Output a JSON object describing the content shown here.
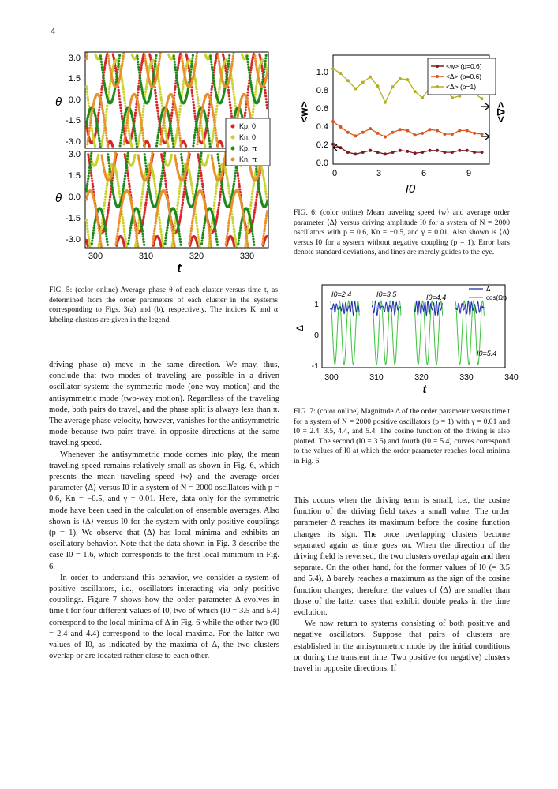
{
  "page_number": "4",
  "fig5": {
    "caption": "FIG. 5: (color online) Average phase θ of each cluster versus time t, as determined from the order parameters of each cluster in the systems corresponding to Figs. 3(a) and (b), respectively. The indices K and α labeling clusters are given in the legend.",
    "y_label": "θ",
    "x_label": "t",
    "y_ticks": [
      "3.0",
      "1.5",
      "0.0",
      "-1.5",
      "-3.0"
    ],
    "x_ticks": [
      "300",
      "310",
      "320",
      "330"
    ],
    "legend": [
      "Kp, 0",
      "Kn, 0",
      "Kp, π",
      "Kn, π"
    ],
    "colors": {
      "kp0": "#d62728",
      "kn0": "#c8d230",
      "kppi": "#1e8a1e",
      "knpi": "#e8902a"
    }
  },
  "fig6": {
    "caption": "FIG. 6: (color online) Mean traveling speed ⟨w⟩ and average order parameter ⟨Δ⟩ versus driving amplitude I0 for a system of N = 2000 oscillators with p = 0.6, Kn = −0.5, and γ = 0.01. Also shown is ⟨Δ⟩ versus I0 for a system without negative coupling (p = 1). Error bars denote standard deviations, and lines are merely guides to the eye.",
    "y_label_left": "<w>",
    "y_label_right": "<Δ>",
    "x_label": "I0",
    "y_ticks": [
      "1.0",
      "0.8",
      "0.6",
      "0.4",
      "0.2",
      "0.0"
    ],
    "x_ticks": [
      "0",
      "3",
      "6",
      "9"
    ],
    "legend": [
      "<w> (p=0.6)",
      "<Δ> (p=0.6)",
      "<Δ> (p=1)"
    ],
    "colors": {
      "w": "#7a1f1f",
      "d06": "#d9561a",
      "d1": "#b5b022"
    }
  },
  "fig7": {
    "caption": "FIG. 7: (color online) Magnitude Δ of the order parameter versus time t for a system of N = 2000 positive oscillators (p = 1) with γ = 0.01 and I0 = 2.4, 3.5, 4.4, and 5.4. The cosine function of the driving is also plotted. The second (I0 = 3.5) and fourth (I0 = 5.4) curves correspond to the values of I0 at which the order parameter reaches local minima in Fig. 6.",
    "y_label": "Δ",
    "x_label": "t",
    "y_ticks": [
      "1",
      "0",
      "-1"
    ],
    "x_ticks": [
      "300",
      "310",
      "320",
      "330",
      "340"
    ],
    "legend": [
      "Δ",
      "cos(Ωt)"
    ],
    "annotations": [
      "I0=2.4",
      "I0=3.5",
      "I0=4.4",
      "I0=5.4"
    ],
    "colors": {
      "delta": "#1c2fa8",
      "cos": "#3cc43c"
    }
  },
  "chart_data": [
    {
      "type": "scatter",
      "id": "fig5",
      "xlabel": "t",
      "ylabel": "θ",
      "xlim": [
        298,
        333
      ],
      "ylim": [
        -3.14,
        3.14
      ],
      "series": [
        {
          "name": "Kp, 0",
          "x": [],
          "y": []
        },
        {
          "name": "Kn, 0",
          "x": [],
          "y": []
        },
        {
          "name": "Kp, π",
          "x": [],
          "y": []
        },
        {
          "name": "Kn, π",
          "x": [],
          "y": []
        }
      ]
    },
    {
      "type": "line",
      "id": "fig6",
      "xlabel": "I0",
      "ylabel": "<w>",
      "xlim": [
        0,
        10.5
      ],
      "ylim": [
        0,
        1.2
      ],
      "x": [
        0,
        0.5,
        1,
        1.5,
        2,
        2.5,
        3,
        3.5,
        4,
        4.5,
        5,
        5.5,
        6,
        6.5,
        7,
        7.5,
        8,
        8.5,
        9,
        9.5,
        10
      ],
      "series": [
        {
          "name": "<w> (p=0.6)",
          "values": [
            0.22,
            0.18,
            0.13,
            0.11,
            0.13,
            0.15,
            0.13,
            0.11,
            0.13,
            0.15,
            0.14,
            0.12,
            0.13,
            0.15,
            0.15,
            0.13,
            0.13,
            0.15,
            0.15,
            0.13,
            0.13
          ]
        },
        {
          "name": "<Δ> (p=0.6)",
          "values": [
            0.47,
            0.41,
            0.35,
            0.31,
            0.35,
            0.39,
            0.34,
            0.3,
            0.35,
            0.38,
            0.37,
            0.32,
            0.34,
            0.38,
            0.37,
            0.33,
            0.33,
            0.37,
            0.37,
            0.34,
            0.33
          ]
        },
        {
          "name": "<Δ> (p=1)",
          "values": [
            1.05,
            1.0,
            0.92,
            0.83,
            0.9,
            0.96,
            0.86,
            0.68,
            0.85,
            0.94,
            0.93,
            0.8,
            0.73,
            0.84,
            0.88,
            0.84,
            0.73,
            0.75,
            0.81,
            0.78,
            0.72
          ]
        }
      ]
    },
    {
      "type": "line",
      "id": "fig7",
      "xlabel": "t",
      "ylabel": "Δ",
      "xlim": [
        298,
        342
      ],
      "ylim": [
        -1.1,
        1.5
      ],
      "series": [
        {
          "name": "Δ",
          "segments": [
            [
              300,
              307
            ],
            [
              310,
              317
            ],
            [
              320,
              327
            ],
            [
              330,
              337
            ]
          ]
        },
        {
          "name": "cos(Ωt)",
          "segments": [
            [
              300,
              307
            ],
            [
              310,
              317
            ],
            [
              320,
              327
            ],
            [
              330,
              337
            ]
          ]
        }
      ]
    }
  ],
  "body_left": [
    "driving phase α) move in the same direction. We may, thus, conclude that two modes of traveling are possible in a driven oscillator system: the symmetric mode (one-way motion) and the antisymmetric mode (two-way motion). Regardless of the traveling mode, both pairs do travel, and the phase split is always less than π. The average phase velocity, however, vanishes for the antisymmetric mode because two pairs travel in opposite directions at the same traveling speed.",
    "Whenever the antisymmetric mode comes into play, the mean traveling speed remains relatively small as shown in Fig. 6, which presents the mean traveling speed ⟨w⟩ and the average order parameter ⟨Δ⟩ versus I0 in a system of N = 2000 oscillators with p = 0.6, Kn = −0.5, and γ = 0.01. Here, data only for the symmetric mode have been used in the calculation of ensemble averages. Also shown is ⟨Δ⟩ versus I0 for the system with only positive couplings (p = 1). We observe that ⟨Δ⟩ has local minima and exhibits an oscillatory behavior. Note that the data shown in Fig. 3 describe the case I0 = 1.6, which corresponds to the first local minimum in Fig. 6.",
    "In order to understand this behavior, we consider a system of positive oscillators, i.e., oscillators interacting via only positive couplings. Figure 7 shows how the order parameter Δ evolves in time t for four different values of I0, two of which (I0 = 3.5 and 5.4) correspond to the local minima of Δ in Fig. 6 while the other two (I0 = 2.4 and 4.4) correspond to the local maxima. For the latter two values of I0, as indicated by the maxima of Δ, the two clusters overlap or are located rather close to each other."
  ],
  "body_right": [
    "This occurs when the driving term is small, i.e., the cosine function of the driving field takes a small value. The order parameter Δ reaches its maximum before the cosine function changes its sign. The once overlapping clusters become separated again as time goes on. When the direction of the driving field is reversed, the two clusters overlap again and then separate. On the other hand, for the former values of I0 (= 3.5 and 5.4), Δ barely reaches a maximum as the sign of the cosine function changes; therefore, the values of ⟨Δ⟩ are smaller than those of the latter cases that exhibit double peaks in the time evolution.",
    "We now return to systems consisting of both positive and negative oscillators. Suppose that pairs of clusters are established in the antisymmetric mode by the initial conditions or during the transient time. Two positive (or negative) clusters travel in opposite directions. If"
  ]
}
